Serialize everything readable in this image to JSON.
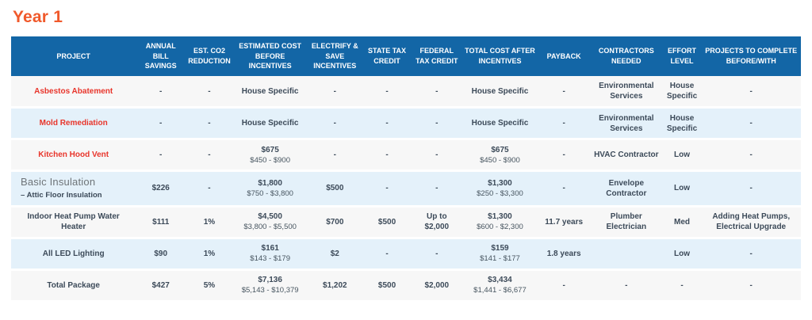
{
  "title": "Year 1",
  "colors": {
    "title": "#F0592B",
    "header_bg": "#1366A6",
    "header_text": "#FFFFFF",
    "row_light": "#F7F7F7",
    "row_blue": "#E4F1FA",
    "project_red": "#E8352B",
    "text_dark": "#3C4A59",
    "text_sub": "#46545F",
    "group_name_gray": "#6E7478"
  },
  "table": {
    "columns": [
      {
        "label": "PROJECT",
        "width": "15.8%"
      },
      {
        "label": "ANNUAL BILL SAVINGS",
        "width": "6.3%"
      },
      {
        "label": "EST. CO2 REDUCTION",
        "width": "6.0%"
      },
      {
        "label": "ESTIMATED COST BEFORE INCENTIVES",
        "width": "9.4%"
      },
      {
        "label": "ELECTRIFY & SAVE INCENTIVES",
        "width": "7.0%"
      },
      {
        "label": "STATE TAX CREDIT",
        "width": "6.2%"
      },
      {
        "label": "FEDERAL TAX CREDIT",
        "width": "6.4%"
      },
      {
        "label": "TOTAL COST AFTER INCENTIVES",
        "width": "9.6%"
      },
      {
        "label": "PAYBACK",
        "width": "6.6%"
      },
      {
        "label": "CONTRACTORS NEEDED",
        "width": "9.2%"
      },
      {
        "label": "EFFORT LEVEL",
        "width": "4.9%"
      },
      {
        "label": "PROJECTS TO COMPLETE BEFORE/WITH",
        "width": "12.6%"
      }
    ],
    "rows": [
      {
        "project": {
          "name": "Asbestos Abatement",
          "style": "red"
        },
        "cells": [
          "-",
          "-",
          "House Specific",
          "-",
          "-",
          "-",
          "House Specific",
          "-",
          "Environmental\nServices",
          "House\nSpecific",
          "-"
        ]
      },
      {
        "project": {
          "name": "Mold Remediation",
          "style": "red"
        },
        "cells": [
          "-",
          "-",
          "House Specific",
          "-",
          "-",
          "-",
          "House Specific",
          "-",
          "Environmental\nServices",
          "House\nSpecific",
          "-"
        ]
      },
      {
        "project": {
          "name": "Kitchen Hood Vent",
          "style": "red"
        },
        "cells": [
          "-",
          "-",
          {
            "main": "$675",
            "sub": "$450 - $900"
          },
          "-",
          "-",
          "-",
          {
            "main": "$675",
            "sub": "$450 - $900"
          },
          "-",
          "HVAC Contractor",
          "Low",
          "-"
        ]
      },
      {
        "project": {
          "name": "Basic Insulation",
          "sub": "–  Attic Floor Insulation",
          "style": "group"
        },
        "cells": [
          "$226",
          "-",
          {
            "main": "$1,800",
            "sub": "$750 - $3,800"
          },
          "$500",
          "-",
          "-",
          {
            "main": "$1,300",
            "sub": "$250 - $3,300"
          },
          "-",
          "Envelope\nContractor",
          "Low",
          "-"
        ]
      },
      {
        "project": {
          "name": "Indoor Heat Pump Water Heater",
          "style": "normal"
        },
        "cells": [
          "$111",
          "1%",
          {
            "main": "$4,500",
            "sub": "$3,800 - $5,500"
          },
          "$700",
          "$500",
          "Up to\n$2,000",
          {
            "main": "$1,300",
            "sub": "$600 - $2,300"
          },
          "11.7 years",
          "Plumber\nElectrician",
          "Med",
          "Adding Heat Pumps,\nElectrical Upgrade"
        ]
      },
      {
        "project": {
          "name": "All LED Lighting",
          "style": "normal"
        },
        "cells": [
          "$90",
          "1%",
          {
            "main": "$161",
            "sub": "$143 - $179"
          },
          "$2",
          "-",
          "-",
          {
            "main": "$159",
            "sub": "$141 - $177"
          },
          "1.8 years",
          "",
          "Low",
          "-"
        ]
      },
      {
        "project": {
          "name": "Total Package",
          "style": "normal"
        },
        "cells": [
          "$427",
          "5%",
          {
            "main": "$7,136",
            "sub": "$5,143 - $10,379"
          },
          "$1,202",
          "$500",
          "$2,000",
          {
            "main": "$3,434",
            "sub": "$1,441 - $6,677"
          },
          "-",
          "-",
          "-",
          "-"
        ]
      }
    ]
  }
}
